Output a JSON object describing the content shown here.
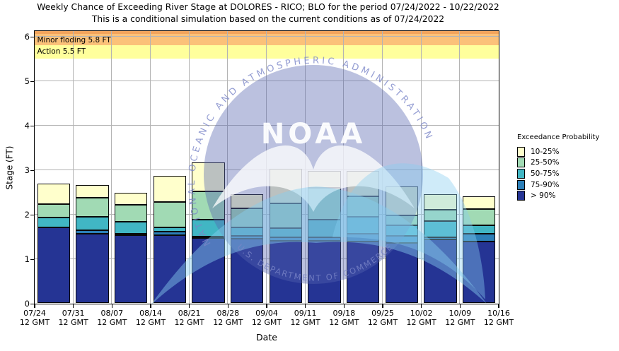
{
  "chart_data": {
    "type": "bar",
    "stacked": true,
    "title": "Weekly Chance of Exceeding River Stage at DOLORES - RICO; BLO for the period 07/24/2022 - 10/22/2022",
    "subtitle": "This is a conditional simulation based on the current conditions as of 07/24/2022",
    "xlabel": "Date",
    "ylabel": "Stage (FT)",
    "ylim": [
      0,
      6.13
    ],
    "yticks": [
      "0",
      "1",
      "2",
      "3",
      "4",
      "5",
      "6"
    ],
    "grid": true,
    "x_ticklabels": [
      {
        "date": "07/24",
        "time": "12 GMT"
      },
      {
        "date": "07/31",
        "time": "12 GMT"
      },
      {
        "date": "08/07",
        "time": "12 GMT"
      },
      {
        "date": "08/14",
        "time": "12 GMT"
      },
      {
        "date": "08/21",
        "time": "12 GMT"
      },
      {
        "date": "08/28",
        "time": "12 GMT"
      },
      {
        "date": "09/04",
        "time": "12 GMT"
      },
      {
        "date": "09/11",
        "time": "12 GMT"
      },
      {
        "date": "09/18",
        "time": "12 GMT"
      },
      {
        "date": "09/25",
        "time": "12 GMT"
      },
      {
        "date": "10/02",
        "time": "12 GMT"
      },
      {
        "date": "10/09",
        "time": "12 GMT"
      },
      {
        "date": "10/16",
        "time": "12 GMT"
      }
    ],
    "weeks": [
      "07/24",
      "07/31",
      "08/07",
      "08/14",
      "08/21",
      "08/28",
      "09/04",
      "09/11",
      "09/18",
      "09/25",
      "10/02",
      "10/09"
    ],
    "flood_zones": [
      {
        "label": "",
        "level": 6.05,
        "color": "#F2A45C"
      },
      {
        "label": "Minor floding 5.8 FT",
        "level": 5.8,
        "color": "#FBC179"
      },
      {
        "label": "Action 5.5 FT",
        "level": 5.5,
        "color": "#FFFF9C"
      }
    ],
    "bands": [
      {
        "label": "10-25%",
        "color": "#FFFFCC",
        "tops": [
          2.69,
          2.66,
          2.49,
          2.87,
          3.17,
          2.45,
          3.03,
          2.98,
          2.97,
          2.62,
          2.46,
          2.4
        ]
      },
      {
        "label": "25-50%",
        "color": "#A1DAB4",
        "tops": [
          2.23,
          2.37,
          2.21,
          2.27,
          2.51,
          2.13,
          2.25,
          2.59,
          2.41,
          1.98,
          2.1,
          2.12
        ]
      },
      {
        "label": "50-75%",
        "color": "#41B6C4",
        "tops": [
          1.93,
          1.94,
          1.84,
          1.7,
          1.88,
          1.7,
          1.69,
          1.88,
          1.94,
          1.76,
          1.85,
          1.76
        ]
      },
      {
        "label": "75-90%",
        "color": "#2C7FB8",
        "tops": [
          1.71,
          1.64,
          1.57,
          1.61,
          1.5,
          1.51,
          1.48,
          1.48,
          1.56,
          1.52,
          1.49,
          1.56
        ]
      },
      {
        "label": "> 90%",
        "color": "#253494",
        "tops": [
          1.71,
          1.56,
          1.53,
          1.53,
          1.47,
          1.46,
          1.4,
          1.4,
          1.39,
          1.35,
          1.44,
          1.39
        ]
      }
    ]
  },
  "legend": {
    "title": "Exceedance Probability"
  },
  "watermark": {
    "center": "NOAA",
    "arc_top": "NATIONAL OCEANIC AND ATMOSPHERIC ADMINISTRATION",
    "arc_bottom": "U.S. DEPARTMENT OF COMMERCE"
  }
}
